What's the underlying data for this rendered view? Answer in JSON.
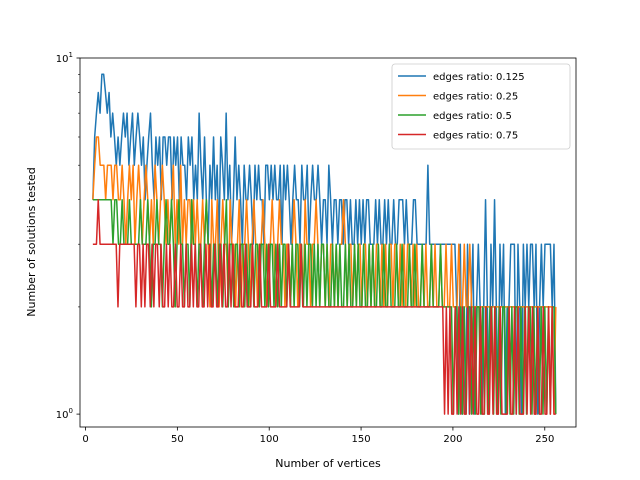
{
  "chart_data": {
    "type": "line",
    "title": "",
    "xlabel": "Number of vertices",
    "ylabel": "Number of solutions tested",
    "xlim": [
      -3,
      267
    ],
    "ylim": [
      0.92,
      10
    ],
    "yscale": "log",
    "grid": false,
    "legend_position": "top-right",
    "x_ticks": [
      0,
      50,
      100,
      150,
      200,
      250
    ],
    "y_ticks": [
      {
        "value": 1,
        "base": "10",
        "exp": "0"
      },
      {
        "value": 10,
        "base": "10",
        "exp": "1"
      }
    ],
    "x_start": 4,
    "x_end": 256,
    "series": [
      {
        "name": "edges ratio: 0.125",
        "color": "#1f77b4",
        "values": [
          4,
          6,
          7,
          8,
          7,
          9,
          9,
          8,
          7,
          8,
          6,
          7,
          6,
          5,
          6,
          5,
          6,
          7,
          6,
          7,
          5,
          6,
          7,
          5,
          6,
          7,
          6,
          5,
          6,
          4,
          5,
          6,
          7,
          5,
          4,
          6,
          5,
          6,
          4,
          6,
          6,
          5,
          6,
          6,
          4,
          6,
          5,
          6,
          4,
          6,
          5,
          5,
          4,
          6,
          5,
          6,
          4,
          5,
          4,
          7,
          5,
          4,
          6,
          4,
          3,
          5,
          4,
          6,
          4,
          5,
          3,
          6,
          5,
          4,
          7,
          4,
          5,
          3,
          4,
          6,
          4,
          5,
          4,
          3,
          5,
          4,
          4,
          5,
          4,
          3,
          5,
          4,
          5,
          4,
          4,
          3,
          5,
          5,
          4,
          5,
          4,
          5,
          4,
          4,
          5,
          3,
          5,
          4,
          5,
          4,
          3,
          4,
          5,
          4,
          4,
          3,
          5,
          4,
          4,
          5,
          3,
          4,
          5,
          4,
          4,
          5,
          4,
          3,
          4,
          4,
          3,
          5,
          4,
          3,
          4,
          4,
          3,
          4,
          4,
          3,
          4,
          4,
          3,
          4,
          3,
          3,
          4,
          3,
          4,
          3,
          4,
          3,
          4,
          4,
          3,
          3,
          3,
          4,
          3,
          4,
          3,
          3,
          4,
          3,
          4,
          3,
          3,
          4,
          3,
          3,
          4,
          4,
          4,
          3,
          4,
          3,
          3,
          3,
          4,
          4,
          3,
          3,
          3,
          3,
          3,
          3,
          5,
          3,
          3,
          3,
          3,
          3,
          3,
          3,
          3,
          3,
          3,
          3,
          3,
          3,
          3,
          3,
          2,
          1,
          3,
          1,
          2,
          1,
          3,
          1,
          2,
          3,
          1,
          2,
          3,
          2,
          1,
          2,
          4,
          2,
          1,
          3,
          2,
          4,
          2,
          1,
          3,
          2,
          3,
          1,
          2,
          2,
          3,
          3,
          3,
          1,
          3,
          2,
          1,
          3,
          2,
          3,
          2,
          3,
          3,
          2,
          3,
          1,
          2,
          3,
          2,
          3,
          3,
          3,
          3,
          2,
          3,
          1
        ]
      },
      {
        "name": "edges ratio: 0.25",
        "color": "#ff7f0e",
        "values": [
          4,
          5,
          6,
          6,
          5,
          5,
          5,
          4,
          5,
          5,
          5,
          4,
          5,
          5,
          4,
          4,
          5,
          4,
          3,
          4,
          5,
          4,
          5,
          3,
          4,
          5,
          4,
          3,
          4,
          5,
          4,
          3,
          4,
          3,
          5,
          4,
          3,
          4,
          5,
          4,
          3,
          4,
          3,
          4,
          5,
          3,
          4,
          3,
          5,
          3,
          4,
          3,
          4,
          4,
          3,
          4,
          3,
          4,
          3,
          3,
          4,
          3,
          4,
          3,
          2,
          4,
          3,
          3,
          4,
          2,
          3,
          4,
          3,
          3,
          2,
          4,
          3,
          3,
          2,
          3,
          4,
          2,
          3,
          3,
          4,
          3,
          2,
          3,
          4,
          3,
          2,
          3,
          3,
          4,
          3,
          2,
          3,
          3,
          4,
          3,
          2,
          3,
          4,
          3,
          3,
          2,
          3,
          3,
          2,
          3,
          4,
          3,
          2,
          3,
          3,
          2,
          4,
          3,
          3,
          2,
          3,
          3,
          4,
          3,
          2,
          3,
          3,
          2,
          3,
          2,
          3,
          3,
          2,
          3,
          2,
          3,
          3,
          4,
          3,
          2,
          3,
          3,
          2,
          3,
          2,
          3,
          3,
          2,
          3,
          3,
          2,
          3,
          2,
          3,
          2,
          3,
          3,
          2,
          3,
          2,
          3,
          2,
          3,
          3,
          2,
          3,
          3,
          2,
          3,
          2,
          3,
          2,
          3,
          3,
          2,
          3,
          2,
          3,
          2,
          2,
          3,
          2,
          3,
          2,
          2,
          3,
          2,
          3,
          2,
          2,
          3,
          2,
          2,
          3,
          2,
          2,
          3,
          2,
          2,
          2,
          3,
          2,
          2,
          3,
          2,
          2,
          3,
          2,
          2,
          2,
          2,
          2,
          2,
          2,
          2,
          2,
          2,
          2,
          2,
          2,
          2,
          2,
          2,
          2,
          2,
          2,
          2,
          2,
          2,
          2,
          2,
          2,
          2,
          2,
          2,
          2,
          2,
          2,
          2,
          2,
          2,
          2,
          2,
          2,
          2,
          2,
          2,
          2,
          2,
          2,
          2,
          2,
          1,
          2
        ]
      },
      {
        "name": "edges ratio: 0.5",
        "color": "#2ca02c",
        "values": [
          4,
          4,
          4,
          4,
          4,
          4,
          4,
          4,
          4,
          4,
          4,
          3,
          4,
          4,
          3,
          3,
          4,
          3,
          3,
          3,
          4,
          3,
          3,
          3,
          3,
          3,
          4,
          3,
          3,
          3,
          4,
          3,
          2,
          3,
          3,
          4,
          3,
          3,
          2,
          3,
          4,
          3,
          3,
          4,
          3,
          2,
          3,
          4,
          3,
          3,
          2,
          3,
          3,
          2,
          4,
          3,
          3,
          2,
          3,
          3,
          2,
          3,
          4,
          3,
          3,
          2,
          3,
          3,
          2,
          3,
          3,
          2,
          3,
          4,
          2,
          3,
          3,
          2,
          3,
          3,
          2,
          3,
          3,
          2,
          3,
          2,
          3,
          3,
          2,
          3,
          3,
          2,
          3,
          3,
          2,
          3,
          2,
          3,
          3,
          2,
          3,
          2,
          3,
          2,
          3,
          3,
          2,
          3,
          2,
          3,
          2,
          3,
          3,
          2,
          3,
          2,
          3,
          2,
          3,
          3,
          2,
          3,
          2,
          3,
          2,
          3,
          3,
          2,
          3,
          2,
          2,
          3,
          2,
          3,
          2,
          3,
          2,
          2,
          3,
          2,
          3,
          2,
          2,
          3,
          2,
          3,
          2,
          2,
          3,
          2,
          2,
          3,
          2,
          3,
          2,
          2,
          3,
          2,
          2,
          3,
          2,
          2,
          3,
          2,
          2,
          2,
          3,
          2,
          2,
          3,
          2,
          2,
          2,
          3,
          2,
          2,
          3,
          2,
          2,
          2,
          3,
          2,
          2,
          2,
          2,
          3,
          2,
          2,
          2,
          2,
          3,
          2,
          2,
          2,
          2,
          2,
          2,
          1,
          2,
          2,
          1,
          2,
          1,
          2,
          1,
          2,
          2,
          1,
          2,
          1,
          2,
          2,
          1,
          2,
          1,
          2,
          1,
          2,
          2,
          1,
          2,
          1,
          2,
          1,
          2,
          2,
          1,
          2,
          1,
          2,
          1,
          2,
          2,
          1,
          2,
          1,
          2,
          1,
          2,
          2,
          1,
          2,
          1,
          2,
          1,
          2,
          1,
          2,
          1,
          2,
          1,
          2,
          2,
          1
        ]
      },
      {
        "name": "edges ratio: 0.75",
        "color": "#d62728",
        "values": [
          3,
          3,
          3,
          4,
          3,
          3,
          3,
          3,
          3,
          3,
          3,
          3,
          3,
          3,
          2,
          3,
          3,
          3,
          3,
          3,
          3,
          3,
          3,
          3,
          2,
          3,
          3,
          2,
          3,
          2,
          3,
          3,
          2,
          3,
          2,
          3,
          3,
          2,
          3,
          2,
          2,
          3,
          2,
          3,
          2,
          2,
          3,
          2,
          2,
          3,
          2,
          2,
          3,
          2,
          2,
          3,
          2,
          3,
          2,
          2,
          3,
          2,
          2,
          3,
          2,
          3,
          2,
          2,
          3,
          2,
          2,
          3,
          2,
          3,
          2,
          2,
          3,
          2,
          3,
          2,
          2,
          2,
          3,
          2,
          2,
          3,
          2,
          2,
          2,
          3,
          2,
          2,
          2,
          3,
          2,
          2,
          2,
          2,
          3,
          2,
          2,
          2,
          2,
          3,
          2,
          2,
          2,
          2,
          2,
          3,
          2,
          2,
          2,
          2,
          2,
          2,
          3,
          2,
          2,
          2,
          2,
          2,
          2,
          2,
          2,
          2,
          2,
          2,
          2,
          2,
          2,
          2,
          2,
          2,
          2,
          2,
          2,
          2,
          2,
          2,
          2,
          2,
          2,
          2,
          2,
          2,
          2,
          2,
          2,
          2,
          2,
          2,
          2,
          2,
          2,
          2,
          2,
          2,
          2,
          2,
          2,
          2,
          2,
          2,
          2,
          2,
          2,
          2,
          2,
          2,
          2,
          2,
          2,
          2,
          2,
          2,
          2,
          2,
          2,
          2,
          2,
          2,
          2,
          2,
          2,
          2,
          2,
          2,
          2,
          2,
          2,
          2,
          2,
          2,
          2,
          2,
          1,
          2,
          1,
          2,
          1,
          1,
          2,
          1,
          2,
          1,
          2,
          1,
          1,
          2,
          1,
          2,
          1,
          2,
          1,
          1,
          2,
          1,
          1,
          2,
          1,
          1,
          2,
          1,
          2,
          1,
          1,
          2,
          1,
          1,
          1,
          1,
          2,
          1,
          1,
          2,
          1,
          2,
          1,
          1,
          1,
          2,
          1,
          2,
          1,
          2,
          1,
          1,
          2,
          1,
          1,
          2,
          1,
          1,
          2,
          1,
          2,
          1,
          1
        ]
      }
    ]
  }
}
